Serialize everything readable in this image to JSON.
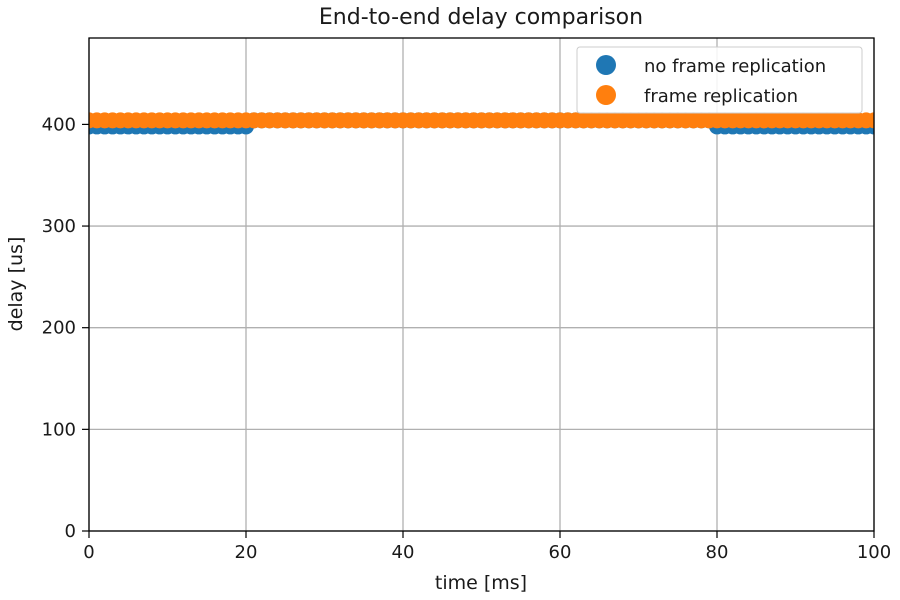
{
  "chart_data": {
    "type": "scatter",
    "title": "End-to-end delay comparison",
    "xlabel": "time [ms]",
    "ylabel": "delay [us]",
    "xlim": [
      0,
      100
    ],
    "ylim": [
      0,
      485
    ],
    "xticks": [
      0,
      20,
      40,
      60,
      80,
      100
    ],
    "yticks": [
      0,
      100,
      200,
      300,
      400
    ],
    "grid": true,
    "legend_position": "top-right",
    "series": [
      {
        "name": "no frame replication",
        "color": "#1f77b4",
        "segments": [
          {
            "x_start": 0,
            "x_end": 20,
            "x_step": 1,
            "y": 398
          },
          {
            "x_start": 21,
            "x_end": 79,
            "x_step": 1,
            "y": 404
          },
          {
            "x_start": 80,
            "x_end": 100,
            "x_step": 1,
            "y": 398
          }
        ]
      },
      {
        "name": "frame replication",
        "color": "#ff7f0e",
        "segments": [
          {
            "x_start": 0,
            "x_end": 100,
            "x_step": 1,
            "y": 404
          }
        ]
      }
    ]
  }
}
